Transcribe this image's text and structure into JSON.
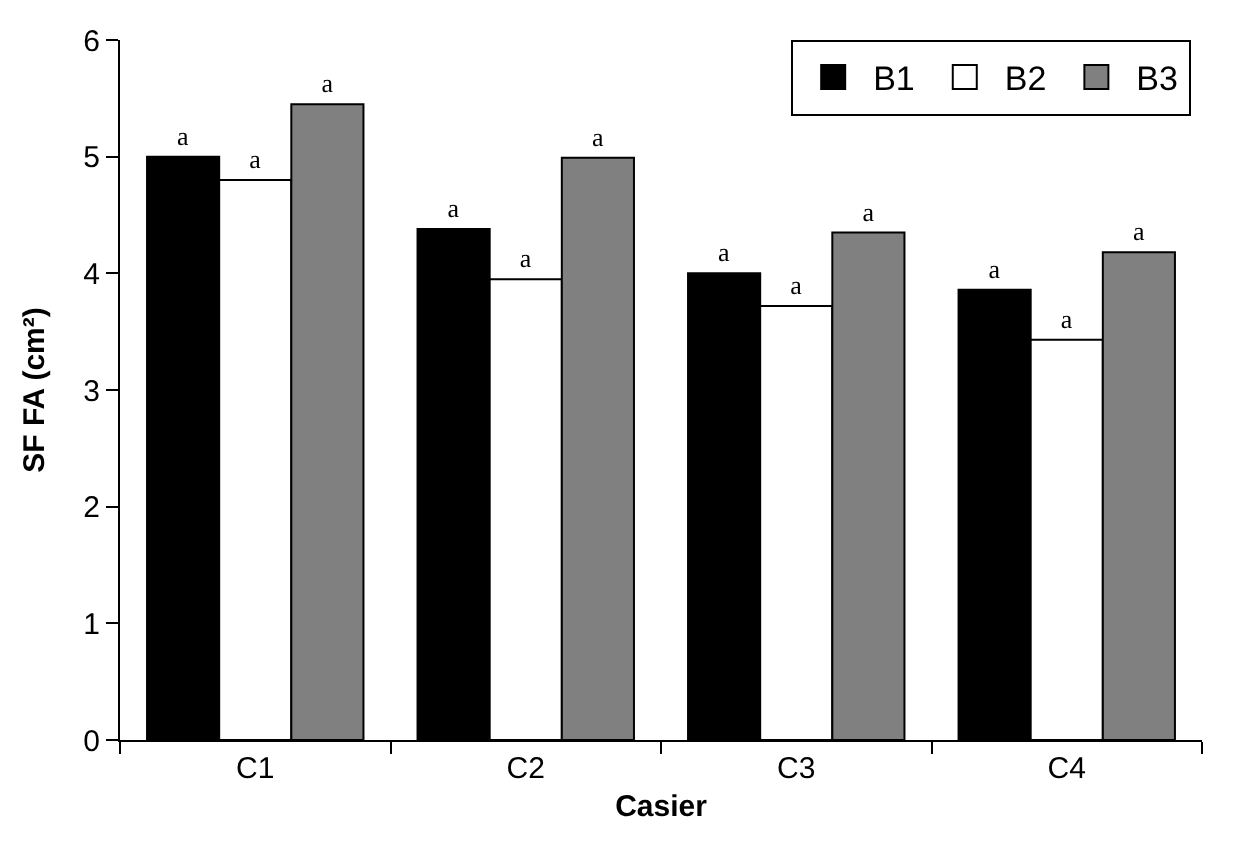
{
  "chart_data": {
    "type": "bar",
    "xlabel": "Casier",
    "ylabel": "SF FA (cm²)",
    "categories": [
      "C1",
      "C2",
      "C3",
      "C4"
    ],
    "series": [
      {
        "name": "B1",
        "color": "#000000",
        "values": [
          5.0,
          4.38,
          4.0,
          3.86
        ],
        "value_labels": [
          "a",
          "a",
          "a",
          "a"
        ]
      },
      {
        "name": "B2",
        "color": "#ffffff",
        "values": [
          4.8,
          3.95,
          3.72,
          3.43
        ],
        "value_labels": [
          "a",
          "a",
          "a",
          "a"
        ]
      },
      {
        "name": "B3",
        "color": "#808080",
        "values": [
          5.45,
          4.99,
          4.35,
          4.18
        ],
        "value_labels": [
          "a",
          "a",
          "a",
          "a"
        ]
      }
    ],
    "ylim": [
      0,
      6
    ],
    "yticks": [
      0,
      1,
      2,
      3,
      4,
      5,
      6
    ],
    "grid": false,
    "legend": "top right"
  }
}
